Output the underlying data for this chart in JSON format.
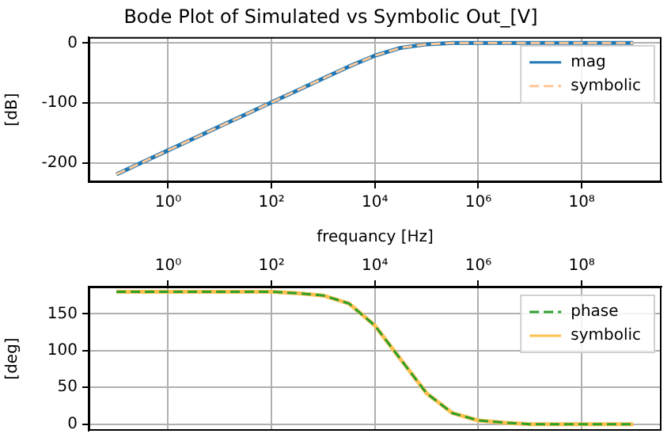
{
  "chart_data": [
    {
      "type": "line",
      "title": "Bode Plot of Simulated vs Symbolic Out_[V]",
      "xlabel": "frequancy [Hz]",
      "ylabel": "[dB]",
      "log": "x",
      "grid": true,
      "legend": "top right",
      "marker": "none",
      "x": [
        0.1,
        0.3162,
        1,
        3.162,
        10,
        31.62,
        100,
        316.2,
        1000,
        3162,
        10000,
        31620,
        100000,
        316200,
        1000000,
        3162000,
        10000000,
        31620000,
        100000000,
        316200000,
        1000000000
      ],
      "xlim": [
        0.029,
        3500000000
      ],
      "xticks": [
        {
          "value": 1,
          "label": "10⁰"
        },
        {
          "value": 100,
          "label": "10²"
        },
        {
          "value": 10000,
          "label": "10⁴"
        },
        {
          "value": 1000000,
          "label": "10⁶"
        },
        {
          "value": 100000000,
          "label": "10⁸"
        }
      ],
      "ylim": [
        -232,
        10
      ],
      "yticks": [
        -200,
        -100,
        0
      ],
      "series": [
        {
          "name": "mag",
          "color": "#1f77b4",
          "line_style": "solid",
          "values": [
            -219,
            -199,
            -179,
            -159,
            -139,
            -119,
            -99,
            -79,
            -59,
            -39,
            -21,
            -8,
            -2,
            0,
            0,
            0,
            0,
            0,
            0,
            0,
            0
          ]
        },
        {
          "name": "symbolic",
          "color": "#ffc896",
          "line_style": "dashed",
          "values": [
            -219,
            -199,
            -179,
            -159,
            -139,
            -119,
            -99,
            -79,
            -59,
            -39,
            -21,
            -8,
            -2,
            0,
            0,
            0,
            0,
            0,
            0,
            0,
            0
          ]
        }
      ]
    },
    {
      "type": "line",
      "ylabel": "[deg]",
      "log": "x",
      "grid": true,
      "legend": "top right",
      "marker": "none",
      "x": [
        0.1,
        0.3162,
        1,
        3.162,
        10,
        31.62,
        100,
        316.2,
        1000,
        3162,
        10000,
        31620,
        100000,
        316200,
        1000000,
        3162000,
        10000000,
        31620000,
        100000000,
        316200000,
        1000000000
      ],
      "xlim": [
        0.029,
        3500000000
      ],
      "xticks": [
        {
          "value": 1,
          "label": "10⁰"
        },
        {
          "value": 100,
          "label": "10²"
        },
        {
          "value": 10000,
          "label": "10⁴"
        },
        {
          "value": 1000000,
          "label": "10⁶"
        },
        {
          "value": 100000000,
          "label": "10⁸"
        }
      ],
      "ylim": [
        -9,
        187
      ],
      "yticks": [
        0,
        50,
        100,
        150
      ],
      "series": [
        {
          "name": "phase",
          "color": "#2ca02c",
          "line_style": "dashed",
          "values": [
            180,
            180,
            180,
            180,
            180,
            180,
            180,
            178,
            175,
            164,
            134,
            88,
            42,
            15,
            5,
            2,
            0,
            0,
            0,
            0,
            0
          ]
        },
        {
          "name": "symbolic",
          "color": "#ffc050",
          "line_style": "solid",
          "values": [
            180,
            180,
            180,
            180,
            180,
            180,
            180,
            178,
            175,
            164,
            134,
            88,
            42,
            15,
            5,
            2,
            0,
            0,
            0,
            0,
            0
          ]
        }
      ]
    }
  ]
}
